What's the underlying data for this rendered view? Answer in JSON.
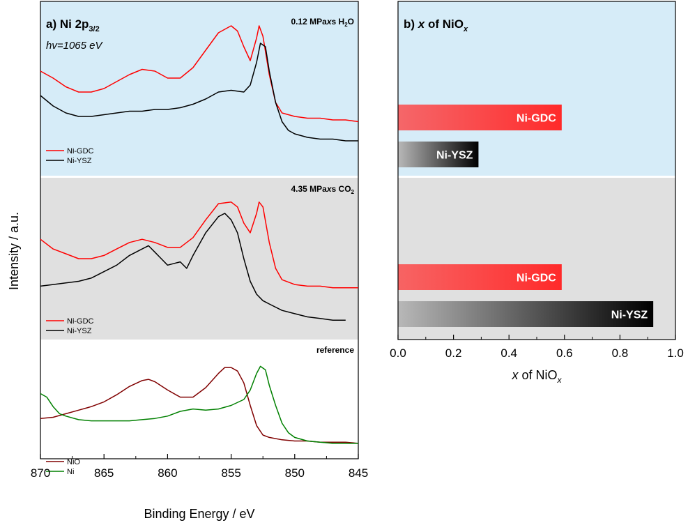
{
  "chart_data": [
    {
      "type": "line",
      "panel_label": "a)",
      "title_main": "Ni 2p",
      "title_sub": "3/2",
      "photon_energy": "hv=1065 eV",
      "xlabel": "Binding Energy / eV",
      "ylabel": "Intensity / a.u.",
      "xlim": [
        870,
        845
      ],
      "x_ticks": [
        "870",
        "865",
        "860",
        "855",
        "850",
        "845"
      ],
      "colors": {
        "Ni-GDC": "#ff0000",
        "Ni-YSZ": "#000000",
        "NiO": "#800000",
        "Ni": "#008000",
        "panel_top_bg": "#d6ecf8",
        "panel_mid_bg": "#e0e0e0"
      },
      "subpanels": [
        {
          "condition": "0.12 MPa",
          "condition_italic": "x",
          "condition_rest": "s H",
          "condition_sub": "2",
          "condition_tail": "O",
          "series": [
            {
              "name": "Ni-GDC",
              "x": [
                870,
                869,
                868,
                867,
                866,
                865,
                864,
                863,
                862,
                861,
                860,
                859,
                858,
                857,
                856,
                855,
                854.5,
                854,
                853.5,
                853,
                852.8,
                852.5,
                852,
                851.5,
                851,
                850,
                849,
                848,
                847,
                846,
                845
              ],
              "y": [
                0.6,
                0.56,
                0.51,
                0.48,
                0.48,
                0.5,
                0.54,
                0.58,
                0.61,
                0.6,
                0.56,
                0.56,
                0.62,
                0.72,
                0.82,
                0.86,
                0.83,
                0.74,
                0.66,
                0.79,
                0.86,
                0.8,
                0.58,
                0.42,
                0.36,
                0.34,
                0.33,
                0.33,
                0.32,
                0.32,
                0.31
              ]
            },
            {
              "name": "Ni-YSZ",
              "x": [
                870,
                869,
                868,
                867,
                866,
                865,
                864,
                863,
                862,
                861,
                860,
                859,
                858,
                857,
                856,
                855,
                854,
                853.5,
                853,
                852.7,
                852.3,
                852,
                851.5,
                851,
                850.5,
                850,
                849,
                848,
                847,
                846,
                845
              ],
              "y": [
                0.46,
                0.4,
                0.36,
                0.34,
                0.34,
                0.35,
                0.36,
                0.37,
                0.37,
                0.38,
                0.38,
                0.39,
                0.41,
                0.44,
                0.48,
                0.49,
                0.48,
                0.52,
                0.65,
                0.76,
                0.74,
                0.6,
                0.42,
                0.31,
                0.26,
                0.24,
                0.22,
                0.21,
                0.21,
                0.2,
                0.2
              ]
            }
          ]
        },
        {
          "condition": "4.35 MPa",
          "condition_italic": "x",
          "condition_rest": "s CO",
          "condition_sub": "2",
          "condition_tail": "",
          "series": [
            {
              "name": "Ni-GDC",
              "x": [
                870,
                869,
                868,
                867,
                866,
                865,
                864,
                863,
                862,
                861,
                860,
                859,
                858,
                857,
                856,
                855,
                854.5,
                854,
                853.5,
                853,
                852.8,
                852.5,
                852,
                851.5,
                851,
                850,
                849,
                848,
                847,
                846,
                845
              ],
              "y": [
                0.62,
                0.56,
                0.53,
                0.5,
                0.5,
                0.52,
                0.56,
                0.6,
                0.62,
                0.6,
                0.57,
                0.57,
                0.63,
                0.74,
                0.84,
                0.85,
                0.82,
                0.72,
                0.66,
                0.78,
                0.85,
                0.82,
                0.6,
                0.44,
                0.37,
                0.34,
                0.33,
                0.33,
                0.32,
                0.32,
                0.32
              ]
            },
            {
              "name": "Ni-YSZ",
              "x": [
                870,
                869,
                868,
                867,
                866,
                865,
                864,
                863,
                862,
                861.5,
                861,
                860.5,
                860,
                859,
                858.5,
                858,
                857,
                856,
                855.5,
                855,
                854.5,
                854,
                853.5,
                853,
                852.5,
                852,
                851,
                850,
                849,
                848,
                847,
                846
              ],
              "y": [
                0.33,
                0.34,
                0.35,
                0.36,
                0.38,
                0.42,
                0.46,
                0.52,
                0.56,
                0.58,
                0.54,
                0.5,
                0.46,
                0.48,
                0.44,
                0.52,
                0.66,
                0.76,
                0.78,
                0.74,
                0.66,
                0.5,
                0.36,
                0.28,
                0.24,
                0.22,
                0.18,
                0.16,
                0.14,
                0.13,
                0.12,
                0.12
              ]
            }
          ]
        },
        {
          "condition": "reference",
          "series": [
            {
              "name": "NiO",
              "x": [
                870,
                869,
                868,
                867,
                866,
                865,
                864,
                863,
                862,
                861.5,
                861,
                860,
                859,
                858,
                857,
                856,
                855.5,
                855,
                854.5,
                854,
                853.5,
                853,
                852.5,
                852,
                851,
                850,
                849,
                848,
                847,
                846,
                845
              ],
              "y": [
                0.34,
                0.35,
                0.38,
                0.41,
                0.44,
                0.48,
                0.54,
                0.61,
                0.66,
                0.67,
                0.65,
                0.58,
                0.52,
                0.52,
                0.6,
                0.72,
                0.77,
                0.77,
                0.74,
                0.64,
                0.45,
                0.28,
                0.2,
                0.18,
                0.16,
                0.15,
                0.15,
                0.14,
                0.14,
                0.14,
                0.13
              ]
            },
            {
              "name": "Ni",
              "x": [
                870,
                869.5,
                869,
                868.5,
                868,
                867,
                866,
                865,
                864,
                863,
                862,
                861,
                860,
                859,
                858,
                857,
                856,
                855,
                854,
                853.5,
                853,
                852.7,
                852.3,
                852,
                851.5,
                851,
                850.5,
                850,
                849,
                848,
                847,
                846,
                845
              ],
              "y": [
                0.55,
                0.52,
                0.44,
                0.38,
                0.36,
                0.33,
                0.32,
                0.32,
                0.32,
                0.32,
                0.33,
                0.34,
                0.36,
                0.4,
                0.42,
                0.41,
                0.42,
                0.45,
                0.5,
                0.58,
                0.72,
                0.78,
                0.75,
                0.62,
                0.45,
                0.3,
                0.22,
                0.18,
                0.15,
                0.14,
                0.13,
                0.13,
                0.13
              ]
            }
          ]
        }
      ]
    },
    {
      "type": "bar",
      "orientation": "horizontal",
      "panel_label": "b)",
      "title_italic": "x",
      "title_rest": " of NiO",
      "title_sub": "x",
      "xlabel_italic": "x",
      "xlabel_rest": " of NiO",
      "xlabel_sub": "x",
      "xlim": [
        0.0,
        1.0
      ],
      "x_ticks": [
        "0.0",
        "0.2",
        "0.4",
        "0.6",
        "0.8",
        "1.0"
      ],
      "x_tick_values": [
        0.0,
        0.2,
        0.4,
        0.6,
        0.8,
        1.0
      ],
      "groups": [
        {
          "condition": "H2O",
          "bars": [
            {
              "label": "Ni-GDC",
              "value": 0.59,
              "color": "#ff3030"
            },
            {
              "label": "Ni-YSZ",
              "value": 0.29,
              "color": "#000000"
            }
          ]
        },
        {
          "condition": "CO2",
          "bars": [
            {
              "label": "Ni-GDC",
              "value": 0.59,
              "color": "#ff3030"
            },
            {
              "label": "Ni-YSZ",
              "value": 0.92,
              "color": "#000000"
            }
          ]
        }
      ]
    }
  ]
}
